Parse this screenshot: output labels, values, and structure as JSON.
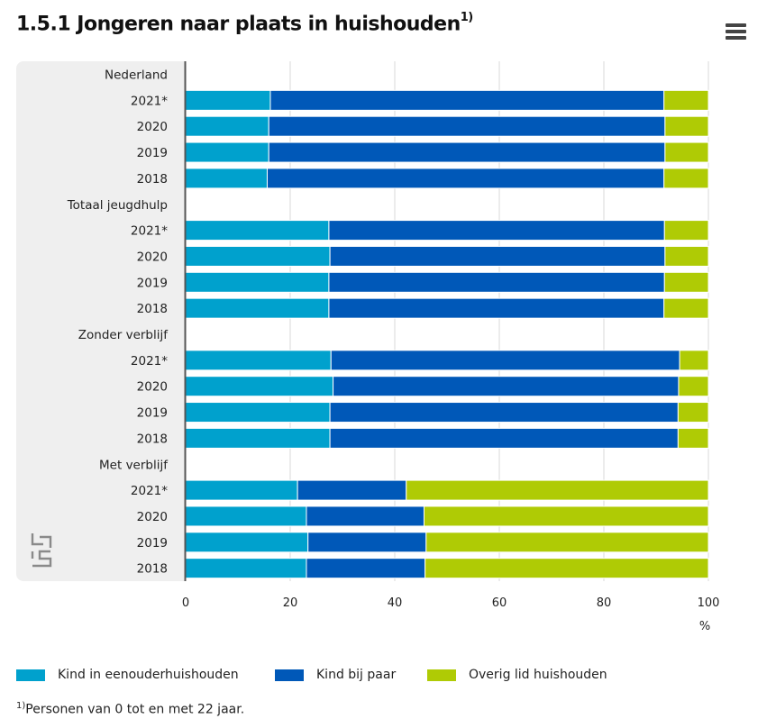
{
  "title": {
    "text": "1.5.1 Jongeren naar plaats in huishouden",
    "superscript": "1)"
  },
  "menu": {
    "icon": "hamburger-menu-icon"
  },
  "footnote": {
    "marker": "1)",
    "text": "Personen van 0 tot en met 22 jaar."
  },
  "chart_data": {
    "type": "bar",
    "orientation": "horizontal",
    "stacked": true,
    "xlabel": "%",
    "xlim": [
      0,
      100
    ],
    "xticks": [
      0,
      20,
      40,
      60,
      80,
      100
    ],
    "grid": true,
    "legend_position": "bottom",
    "series_colors": [
      "#00a1cd",
      "#0058b8",
      "#afcb05"
    ],
    "groups": [
      {
        "label": "Nederland",
        "rows": [
          {
            "label": "2021*",
            "values": [
              16.2,
              75.3,
              8.5
            ]
          },
          {
            "label": "2020",
            "values": [
              15.9,
              75.8,
              8.3
            ]
          },
          {
            "label": "2019",
            "values": [
              15.9,
              75.8,
              8.3
            ]
          },
          {
            "label": "2018",
            "values": [
              15.6,
              75.9,
              8.5
            ]
          }
        ]
      },
      {
        "label": "Totaal jeugdhulp",
        "rows": [
          {
            "label": "2021*",
            "values": [
              27.4,
              64.2,
              8.4
            ]
          },
          {
            "label": "2020",
            "values": [
              27.6,
              64.1,
              8.3
            ]
          },
          {
            "label": "2019",
            "values": [
              27.4,
              64.2,
              8.4
            ]
          },
          {
            "label": "2018",
            "values": [
              27.4,
              64.1,
              8.5
            ]
          }
        ]
      },
      {
        "label": "Zonder verblijf",
        "rows": [
          {
            "label": "2021*",
            "values": [
              27.8,
              66.7,
              5.5
            ]
          },
          {
            "label": "2020",
            "values": [
              28.2,
              66.1,
              5.7
            ]
          },
          {
            "label": "2019",
            "values": [
              27.6,
              66.6,
              5.8
            ]
          },
          {
            "label": "2018",
            "values": [
              27.6,
              66.6,
              5.8
            ]
          }
        ]
      },
      {
        "label": "Met verblijf",
        "rows": [
          {
            "label": "2021*",
            "values": [
              21.4,
              20.8,
              57.8
            ]
          },
          {
            "label": "2020",
            "values": [
              23.1,
              22.5,
              54.4
            ]
          },
          {
            "label": "2019",
            "values": [
              23.4,
              22.6,
              54.0
            ]
          },
          {
            "label": "2018",
            "values": [
              23.1,
              22.7,
              54.2
            ]
          }
        ]
      }
    ],
    "series": [
      {
        "name": "Kind in eenouderhuishouden"
      },
      {
        "name": "Kind bij paar"
      },
      {
        "name": "Overig lid huishouden"
      }
    ]
  }
}
